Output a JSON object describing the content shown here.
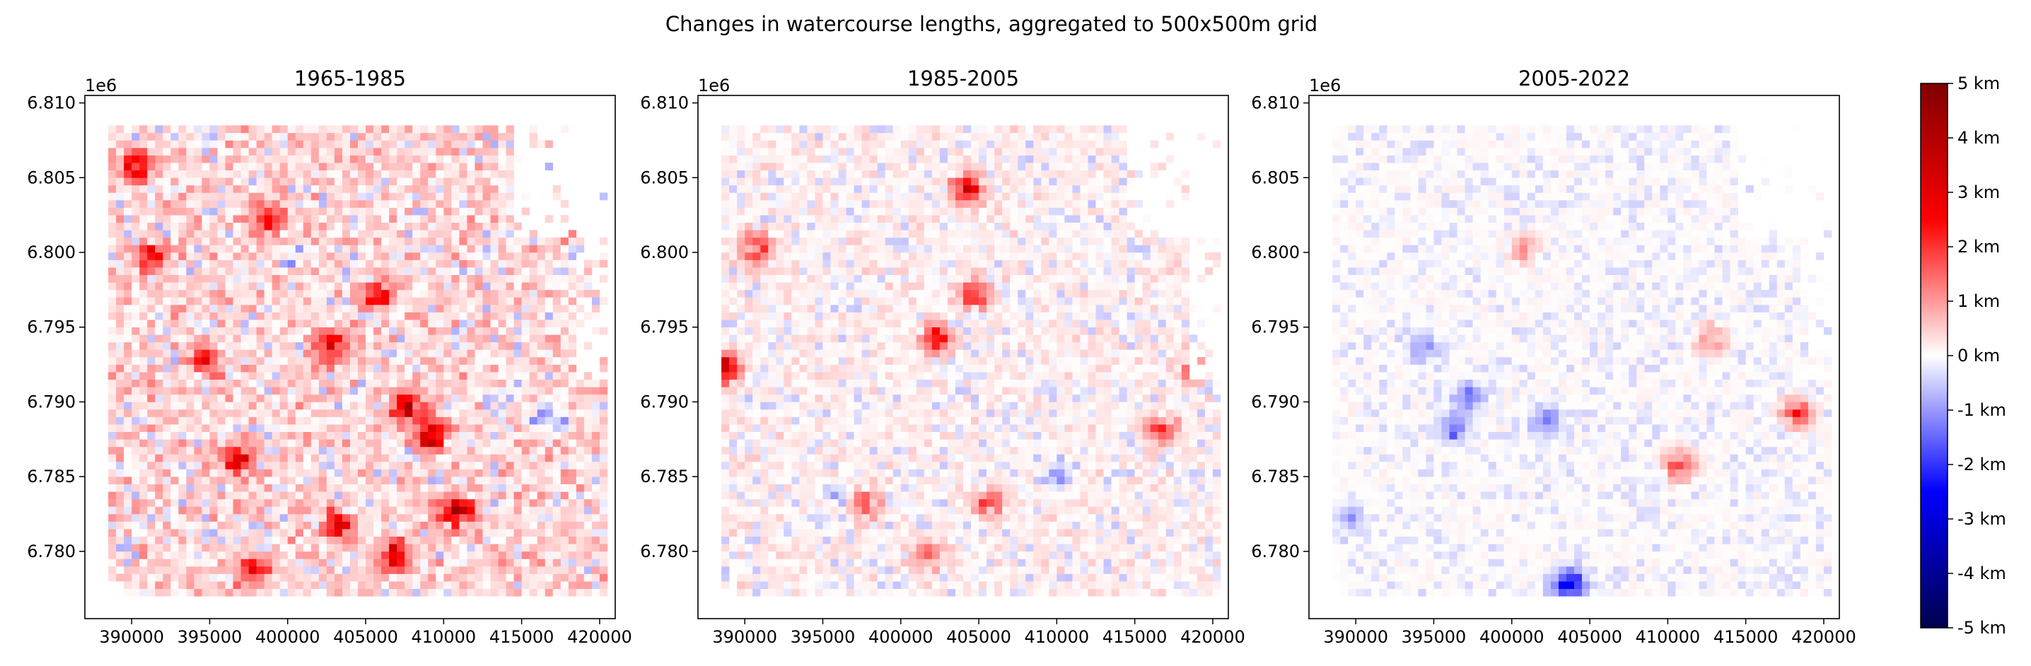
{
  "figure": {
    "suptitle": "Changes in watercourse lengths, aggregated to 500x500m grid"
  },
  "chart_data": [
    {
      "type": "heatmap",
      "title": "1965-1985",
      "xlabel": "",
      "ylabel": "",
      "x_ticks": [
        390000,
        395000,
        400000,
        405000,
        410000,
        415000,
        420000
      ],
      "x_tick_labels": [
        "390000",
        "395000",
        "400000",
        "405000",
        "410000",
        "415000",
        "420000"
      ],
      "y_ticks": [
        6780000,
        6785000,
        6790000,
        6795000,
        6800000,
        6805000,
        6810000
      ],
      "y_tick_labels": [
        "6.780",
        "6.785",
        "6.790",
        "6.795",
        "6.800",
        "6.805",
        "6.810"
      ],
      "y_offset_label": "1e6",
      "xlim": [
        387000,
        421000
      ],
      "ylim": [
        6775500,
        6810500
      ],
      "grid": false,
      "cell_size_m": 500,
      "data_extent": {
        "x": [
          388500,
          420500
        ],
        "y": [
          6777000,
          6808500
        ]
      },
      "value_unit": "km",
      "dominant_pattern": "widespread increases (red), strongest clusters in centre-east and north-west",
      "hotspots_km": [
        {
          "x": 390250,
          "y": 6805750,
          "value": 3.0
        },
        {
          "x": 391250,
          "y": 6799750,
          "value": 2.6
        },
        {
          "x": 396750,
          "y": 6786250,
          "value": 3.2
        },
        {
          "x": 398750,
          "y": 6802250,
          "value": 2.2
        },
        {
          "x": 402750,
          "y": 6793750,
          "value": 2.8
        },
        {
          "x": 403250,
          "y": 6781750,
          "value": 3.0
        },
        {
          "x": 405750,
          "y": 6797250,
          "value": 2.6
        },
        {
          "x": 406750,
          "y": 6779750,
          "value": 3.4
        },
        {
          "x": 407750,
          "y": 6789750,
          "value": 3.6
        },
        {
          "x": 409250,
          "y": 6787750,
          "value": 3.8
        },
        {
          "x": 410750,
          "y": 6782750,
          "value": 4.0
        },
        {
          "x": 397750,
          "y": 6778750,
          "value": 2.4
        },
        {
          "x": 394750,
          "y": 6792750,
          "value": 2.2
        },
        {
          "x": 416750,
          "y": 6789250,
          "value": -1.4
        },
        {
          "x": 400750,
          "y": 6799750,
          "value": -0.8
        }
      ]
    },
    {
      "type": "heatmap",
      "title": "1985-2005",
      "xlabel": "",
      "ylabel": "",
      "x_ticks": [
        390000,
        395000,
        400000,
        405000,
        410000,
        415000,
        420000
      ],
      "x_tick_labels": [
        "390000",
        "395000",
        "400000",
        "405000",
        "410000",
        "415000",
        "420000"
      ],
      "y_ticks": [
        6780000,
        6785000,
        6790000,
        6795000,
        6800000,
        6805000,
        6810000
      ],
      "y_tick_labels": [
        "6.780",
        "6.785",
        "6.790",
        "6.795",
        "6.800",
        "6.805",
        "6.810"
      ],
      "y_offset_label": "1e6",
      "xlim": [
        387000,
        421000
      ],
      "ylim": [
        6775500,
        6810500
      ],
      "grid": false,
      "cell_size_m": 500,
      "data_extent": {
        "x": [
          388500,
          420500
        ],
        "y": [
          6777000,
          6808500
        ]
      },
      "value_unit": "km",
      "dominant_pattern": "weaker, scattered increases with some small decreases",
      "hotspots_km": [
        {
          "x": 388750,
          "y": 6792250,
          "value": 3.8
        },
        {
          "x": 390750,
          "y": 6800250,
          "value": 2.4
        },
        {
          "x": 402250,
          "y": 6794250,
          "value": 2.6
        },
        {
          "x": 404750,
          "y": 6797250,
          "value": 2.4
        },
        {
          "x": 404250,
          "y": 6804250,
          "value": 3.0
        },
        {
          "x": 405750,
          "y": 6783250,
          "value": 2.2
        },
        {
          "x": 397750,
          "y": 6783250,
          "value": 2.0
        },
        {
          "x": 416750,
          "y": 6788250,
          "value": 2.2
        },
        {
          "x": 418750,
          "y": 6792250,
          "value": 1.8
        },
        {
          "x": 401750,
          "y": 6779750,
          "value": 1.8
        },
        {
          "x": 410250,
          "y": 6785250,
          "value": -0.9
        },
        {
          "x": 396250,
          "y": 6783750,
          "value": -0.8
        }
      ]
    },
    {
      "type": "heatmap",
      "title": "2005-2022",
      "xlabel": "",
      "ylabel": "",
      "x_ticks": [
        390000,
        395000,
        400000,
        405000,
        410000,
        415000,
        420000
      ],
      "x_tick_labels": [
        "390000",
        "395000",
        "400000",
        "405000",
        "410000",
        "415000",
        "420000"
      ],
      "y_ticks": [
        6780000,
        6785000,
        6790000,
        6795000,
        6800000,
        6805000,
        6810000
      ],
      "y_tick_labels": [
        "6.780",
        "6.785",
        "6.790",
        "6.795",
        "6.800",
        "6.805",
        "6.810"
      ],
      "y_offset_label": "1e6",
      "xlim": [
        387000,
        421000
      ],
      "ylim": [
        6775500,
        6810500
      ],
      "grid": false,
      "cell_size_m": 500,
      "data_extent": {
        "x": [
          388500,
          420500
        ],
        "y": [
          6777000,
          6808500
        ]
      },
      "value_unit": "km",
      "dominant_pattern": "mostly near zero; mixed small increases and decreases",
      "hotspots_km": [
        {
          "x": 403750,
          "y": 6777750,
          "value": -3.0
        },
        {
          "x": 396250,
          "y": 6788250,
          "value": -1.6
        },
        {
          "x": 397250,
          "y": 6790250,
          "value": -1.2
        },
        {
          "x": 402250,
          "y": 6788750,
          "value": -1.4
        },
        {
          "x": 389750,
          "y": 6782250,
          "value": -1.0
        },
        {
          "x": 394250,
          "y": 6793750,
          "value": -1.0
        },
        {
          "x": 410750,
          "y": 6785750,
          "value": 2.0
        },
        {
          "x": 418250,
          "y": 6789250,
          "value": 2.4
        },
        {
          "x": 412750,
          "y": 6794250,
          "value": 1.6
        },
        {
          "x": 400750,
          "y": 6800250,
          "value": 1.2
        }
      ]
    }
  ],
  "colorbar": {
    "colormap": "seismic",
    "vmin": -5,
    "vmax": 5,
    "colors": {
      "low": "#00004d",
      "mid_low": "#0000ff",
      "zero": "#ffffff",
      "mid_high": "#ff0000",
      "high": "#800000"
    },
    "ticks": [
      5,
      4,
      3,
      2,
      1,
      0,
      -1,
      -2,
      -3,
      -4,
      -5
    ],
    "tick_labels": [
      "5 km",
      "4 km",
      "3 km",
      "2 km",
      "1 km",
      "0 km",
      "-1 km",
      "-2 km",
      "-3 km",
      "-4 km",
      "-5 km"
    ]
  }
}
